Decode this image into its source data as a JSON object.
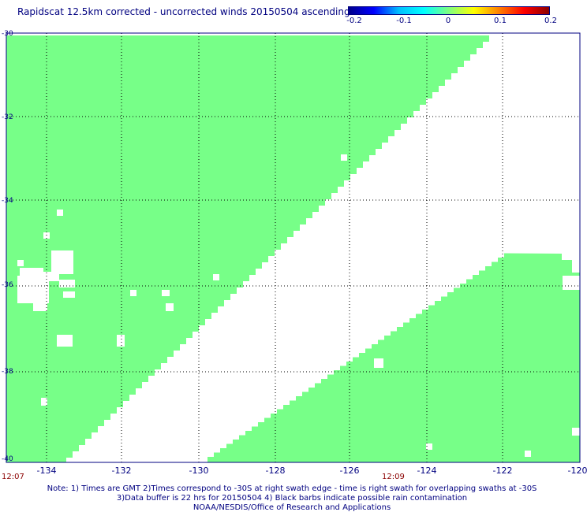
{
  "title": "Rapidscat 12.5km corrected - uncorrected winds 20150504 ascending",
  "colorbar": {
    "ticks": [
      "-0.2",
      "-0.1",
      "0",
      "0.1",
      "0.2"
    ],
    "colors": [
      "#00008b",
      "#0000ff",
      "#00bfff",
      "#00ffff",
      "#7fff7f",
      "#ffff00",
      "#ff8000",
      "#ff0000",
      "#8b0000"
    ]
  },
  "map": {
    "land_fill_color": "#77ff88",
    "lat_labels": [
      "-30",
      "-32",
      "-34",
      "-36",
      "-38",
      "-40"
    ],
    "lon_labels": [
      "-134",
      "-132",
      "-130",
      "-128",
      "-126",
      "-124",
      "-122",
      "-120"
    ],
    "lat_range": [
      -40,
      -30
    ],
    "lon_range": [
      -135,
      -120
    ]
  },
  "times": {
    "left": "12:07",
    "mid": "12:09"
  },
  "notes": {
    "line1": "Note: 1) Times are GMT 2)Times correspond to -30S at right swath edge - time is right swath for overlapping swaths at -30S",
    "line2": "3)Data buffer is 22 hrs for 20150504 4) Black barbs indicate possible rain contamination",
    "line3": "NOAA/NESDIS/Office of Research and Applications"
  }
}
